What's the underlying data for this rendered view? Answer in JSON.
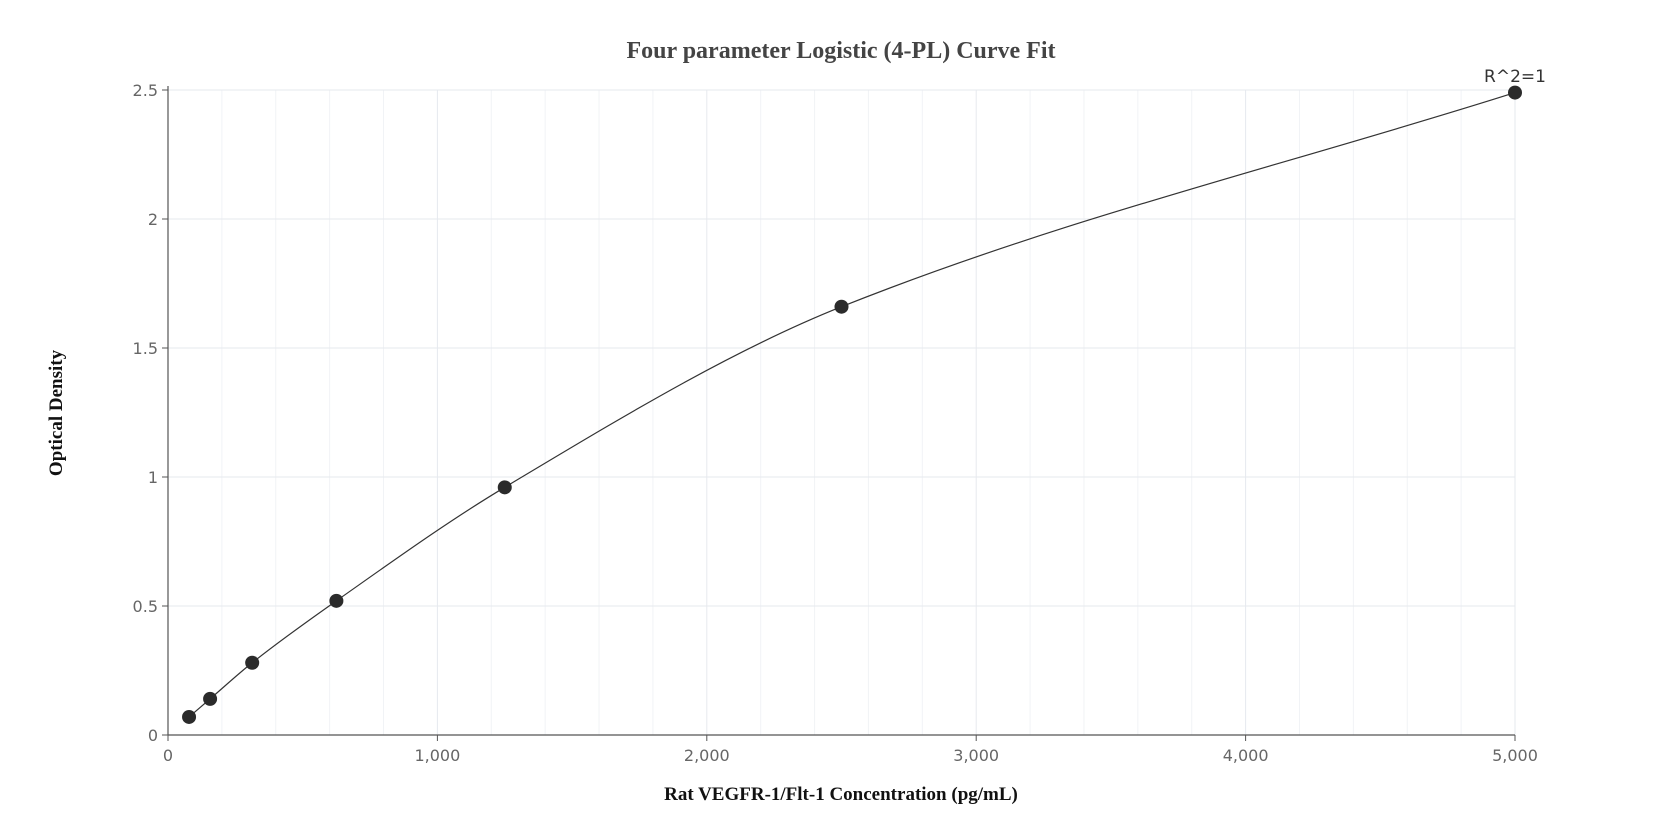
{
  "chart_data": {
    "type": "scatter",
    "title": "Four parameter Logistic (4-PL) Curve Fit",
    "xlabel": "Rat VEGFR-1/Flt-1 Concentration (pg/mL)",
    "ylabel": "Optical Density",
    "xlim": [
      0,
      5000
    ],
    "ylim": [
      0,
      2.5
    ],
    "x_ticks": [
      "0",
      "1,000",
      "2,000",
      "3,000",
      "4,000",
      "5,000"
    ],
    "y_ticks": [
      "0",
      "0.5",
      "1",
      "1.5",
      "2",
      "2.5"
    ],
    "grid": true,
    "annotation": "R^2=1",
    "series": [
      {
        "x": [
          78.125,
          156.25,
          312.5,
          625,
          1250,
          2500,
          5000
        ],
        "y": [
          0.07,
          0.14,
          0.28,
          0.52,
          0.96,
          1.66,
          2.49
        ]
      }
    ],
    "fit": "4-PL curve",
    "colors": {
      "points": "#2b2b2b",
      "curve": "#333333",
      "grid": "#e6e9ee",
      "axis": "#555555"
    }
  }
}
